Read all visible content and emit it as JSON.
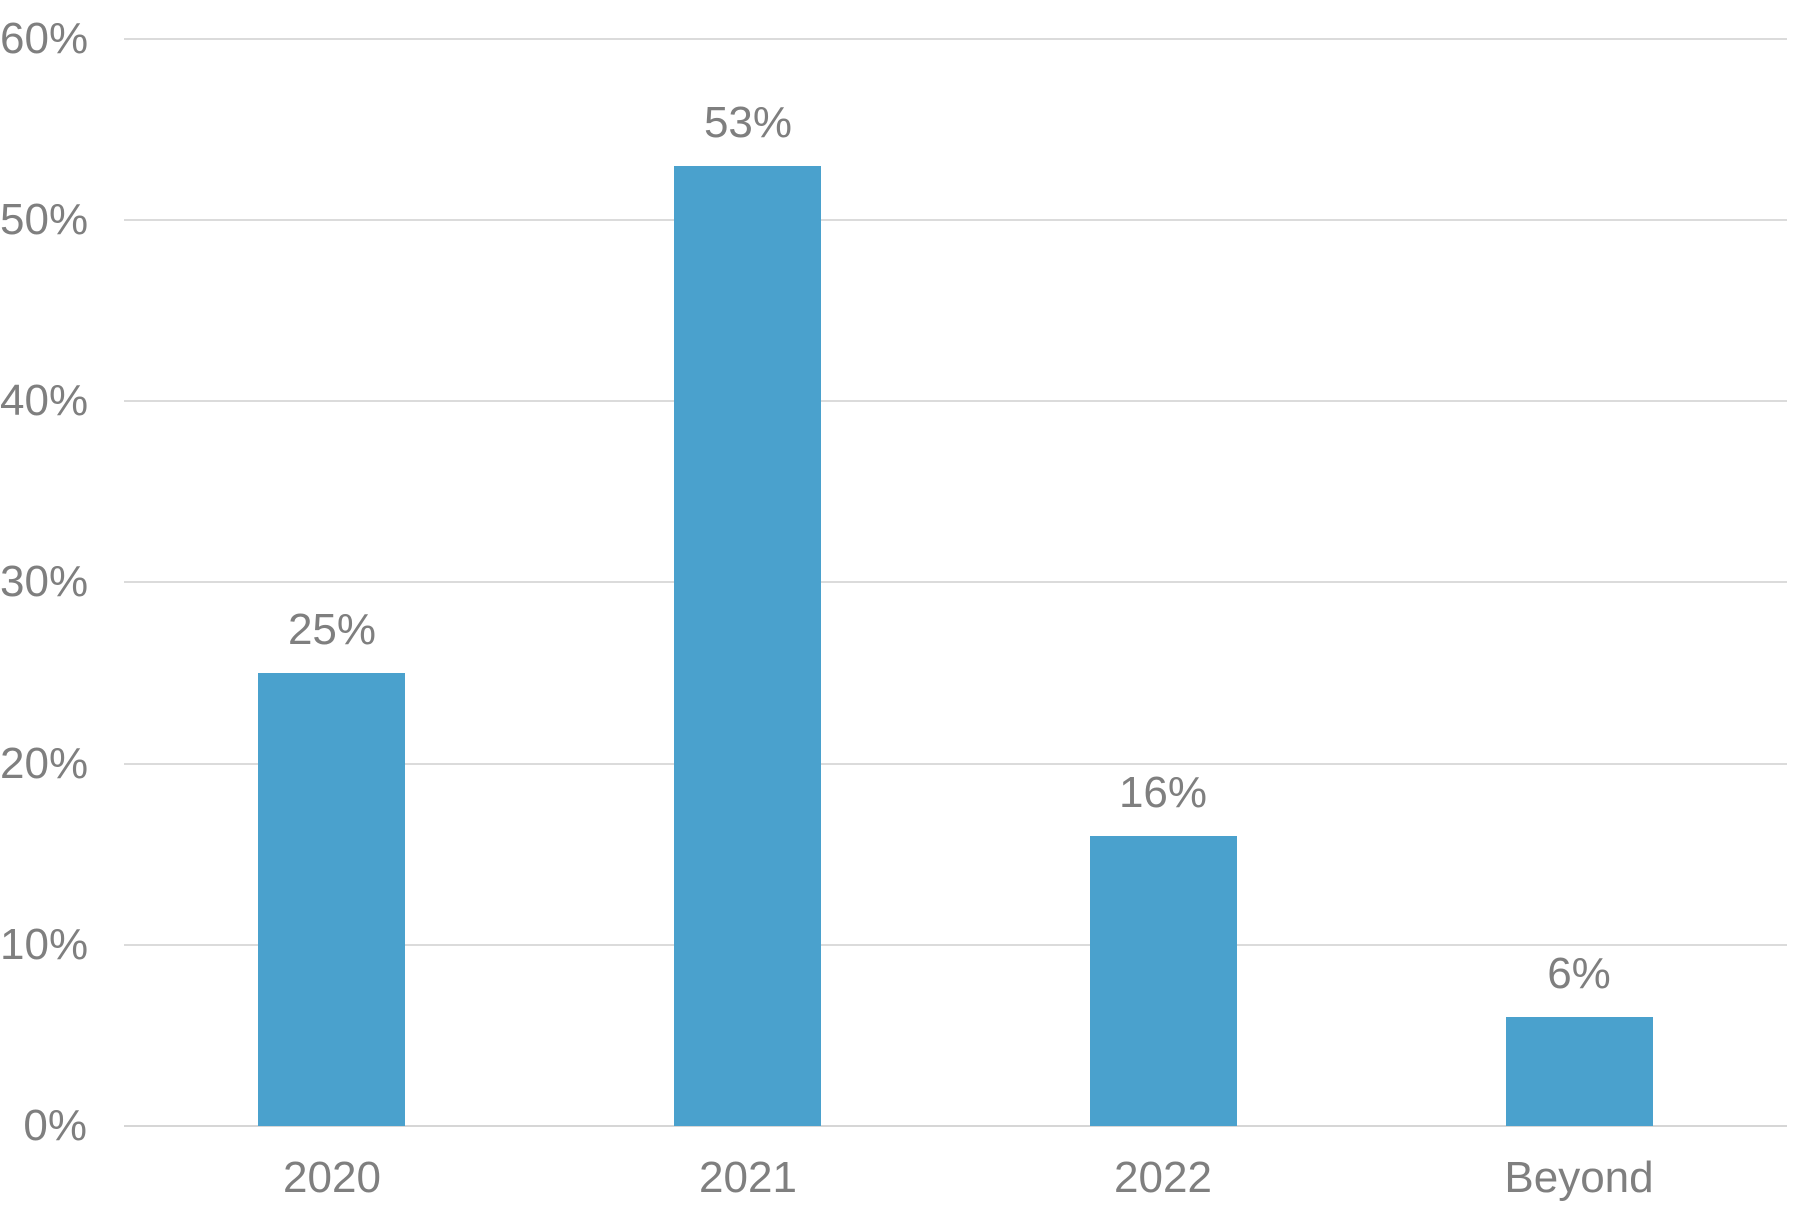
{
  "chart_data": {
    "type": "bar",
    "categories": [
      "2020",
      "2021",
      "2022",
      "Beyond"
    ],
    "values": [
      25,
      53,
      16,
      6
    ],
    "value_labels": [
      "25%",
      "53%",
      "16%",
      "6%"
    ],
    "title": "",
    "xlabel": "",
    "ylabel": "",
    "ylim": [
      0,
      60
    ],
    "yticks": [
      0,
      10,
      20,
      30,
      40,
      50,
      60
    ],
    "ytick_labels": [
      "0%",
      "10%",
      "20%",
      "30%",
      "40%",
      "50%",
      "60%"
    ],
    "grid": true,
    "legend": false,
    "bar_color": "#4AA1CD",
    "text_color": "#7F7F7F",
    "gridline_color": "#DBDBDB",
    "axisline_color": "#D6D6D6",
    "background_color": "#FFFFFF"
  }
}
